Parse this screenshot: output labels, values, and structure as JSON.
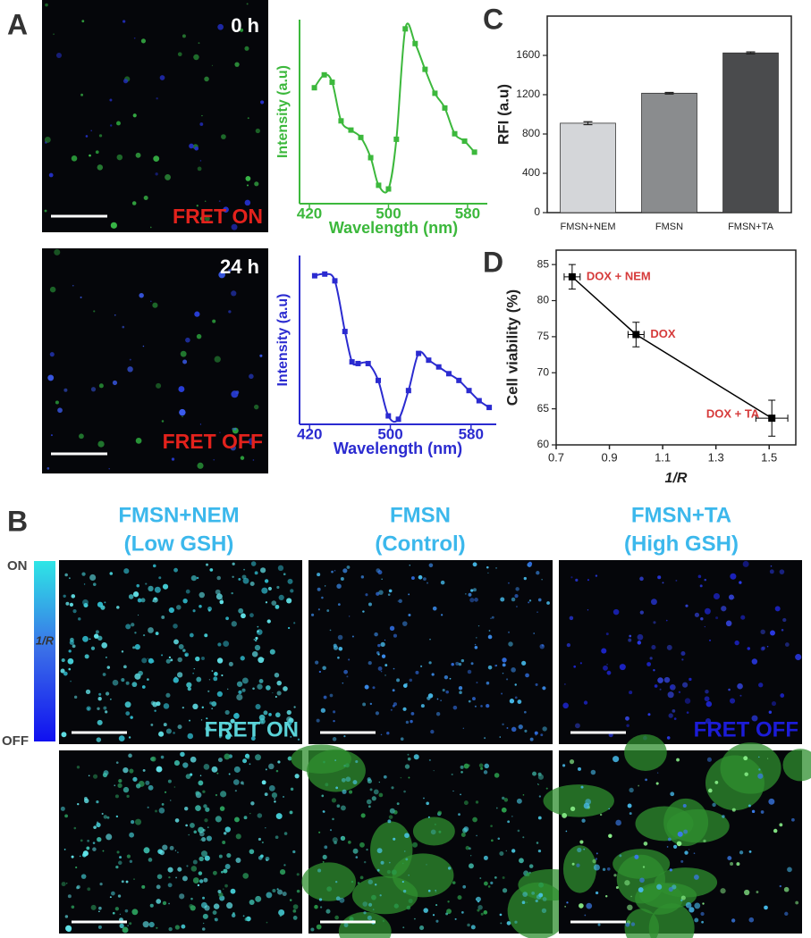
{
  "panel_labels": [
    "A",
    "B",
    "C",
    "D"
  ],
  "images": [
    {
      "time": "0 h",
      "status": "FRET ON"
    },
    {
      "time": "24 h",
      "status": "FRET OFF"
    }
  ],
  "groups": [
    {
      "name": "FMSN+NEM",
      "condition": "(Low GSH)"
    },
    {
      "name": "FMSN",
      "condition": "(Control)"
    },
    {
      "name": "FMSN+TA",
      "condition": "(High GSH)"
    }
  ],
  "fret_labels": [
    "FRET ON",
    "FRET OFF"
  ],
  "colorbar": {
    "top": "ON",
    "bottom": "OFF",
    "label": "1/R"
  },
  "chart_data": [
    {
      "type": "line",
      "x": [
        425,
        435,
        443,
        452,
        462,
        472,
        482,
        490,
        500,
        508,
        517,
        527,
        537,
        547,
        557,
        567,
        577,
        587
      ],
      "values": [
        0.63,
        0.7,
        0.66,
        0.45,
        0.4,
        0.36,
        0.25,
        0.1,
        0.08,
        0.35,
        0.95,
        0.87,
        0.73,
        0.6,
        0.52,
        0.38,
        0.34,
        0.28
      ],
      "color": "#3cb83c",
      "xlim": [
        410,
        600
      ],
      "ylim": [
        0,
        1
      ],
      "xticks": [
        420,
        500,
        580
      ],
      "xlabel": "Wavelength (nm)",
      "ylabel": "Intensity (a.u)"
    },
    {
      "type": "line",
      "x": [
        425,
        435,
        445,
        455,
        462,
        468,
        478,
        488,
        498,
        508,
        518,
        528,
        538,
        548,
        558,
        568,
        578,
        588,
        598
      ],
      "values": [
        0.88,
        0.89,
        0.85,
        0.55,
        0.37,
        0.36,
        0.36,
        0.26,
        0.05,
        0.03,
        0.2,
        0.42,
        0.38,
        0.34,
        0.3,
        0.26,
        0.2,
        0.14,
        0.1
      ],
      "color": "#2b2bd0",
      "xlim": [
        410,
        605
      ],
      "ylim": [
        0,
        1
      ],
      "xticks": [
        420,
        500,
        580
      ],
      "xlabel": "Wavelength (nm)",
      "ylabel": "Intensity (a.u)"
    },
    {
      "type": "bar",
      "categories": [
        "FMSN+NEM",
        "FMSN",
        "FMSN+TA"
      ],
      "values": [
        910,
        1215,
        1625
      ],
      "errors": [
        15,
        8,
        10
      ],
      "colors": [
        "#d4d6d9",
        "#8a8c8e",
        "#4a4b4d"
      ],
      "ylim": [
        0,
        2000
      ],
      "yticks": [
        0,
        400,
        800,
        1200,
        1600
      ],
      "ylabel": "RFI (a.u)"
    },
    {
      "type": "scatter",
      "x": [
        0.76,
        1.0,
        1.51
      ],
      "values": [
        83.3,
        75.3,
        63.7
      ],
      "xerr": [
        0.03,
        0.03,
        0.06
      ],
      "yerr": [
        1.7,
        1.7,
        2.5
      ],
      "point_labels": [
        "DOX + NEM",
        "DOX",
        "DOX + TA"
      ],
      "label_color": "#d63a3a",
      "color": "#000000",
      "xlim": [
        0.7,
        1.6
      ],
      "ylim": [
        60,
        87
      ],
      "xticks": [
        0.7,
        0.9,
        1.1,
        1.3,
        1.5
      ],
      "yticks": [
        60,
        65,
        70,
        75,
        80,
        85
      ],
      "xlabel": "1/R",
      "ylabel": "Cell viability (%)",
      "connect": true
    }
  ]
}
